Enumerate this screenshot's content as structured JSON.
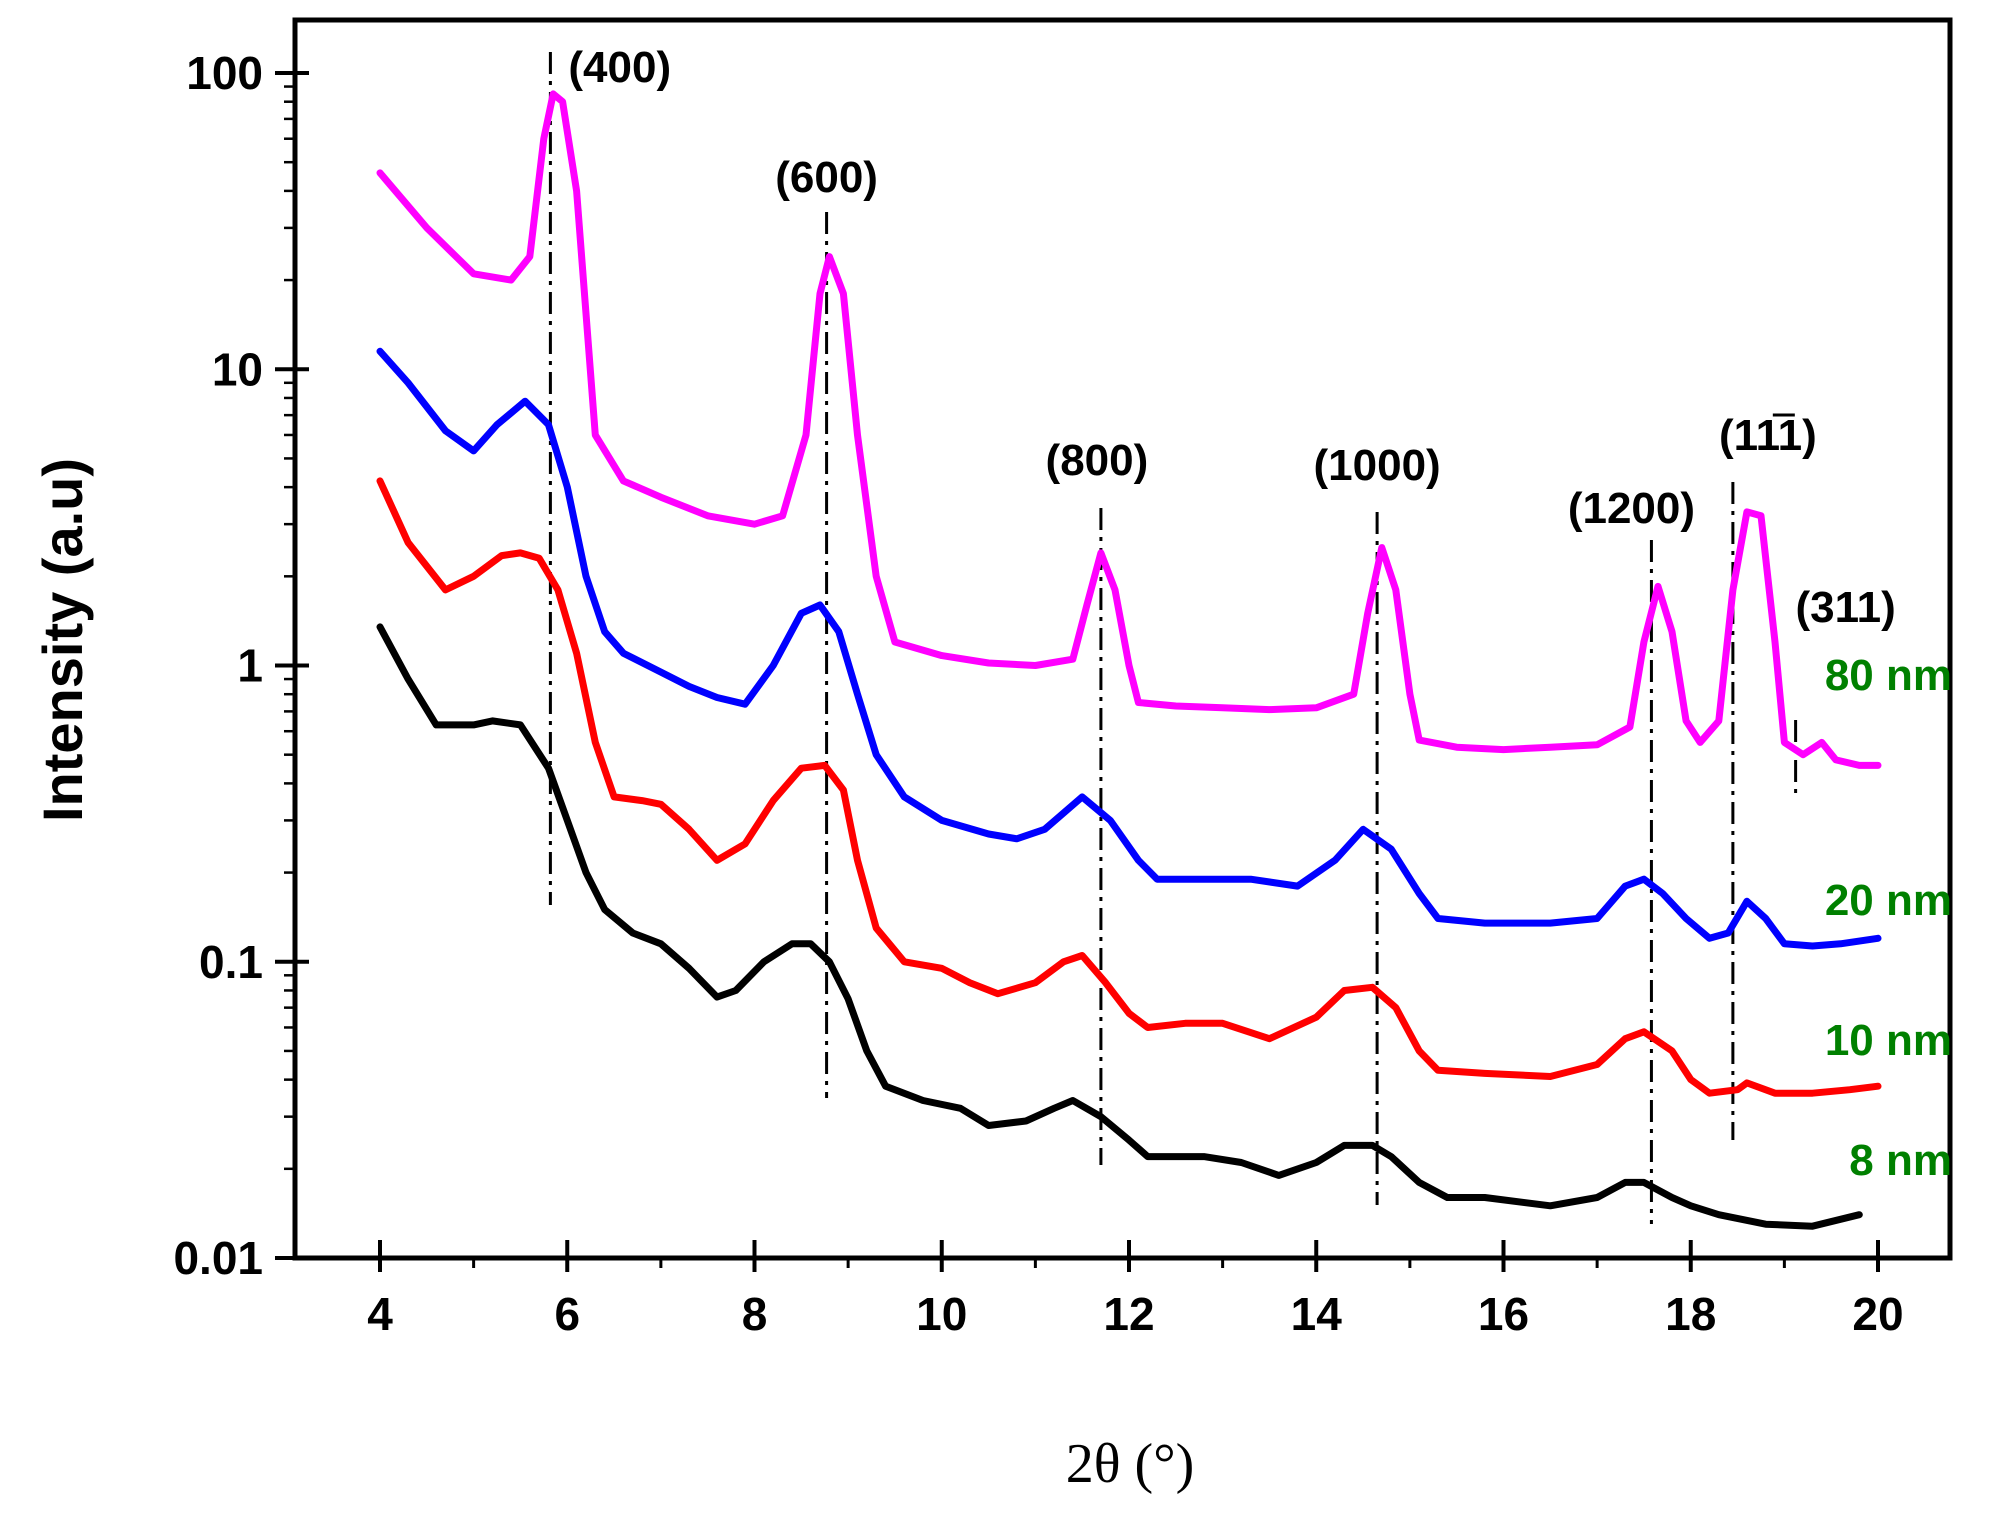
{
  "chart_data": {
    "type": "line",
    "title": "",
    "xlabel": "2θ (°)",
    "ylabel": "Intensity (a.u)",
    "xlim": [
      3,
      21
    ],
    "ylim": [
      0.01,
      100
    ],
    "yscale": "log",
    "x_ticks": [
      4,
      6,
      8,
      10,
      12,
      14,
      16,
      18,
      20
    ],
    "x_tick_labels": [
      "4",
      "6",
      "8",
      "10",
      "12",
      "14",
      "16",
      "18",
      "20"
    ],
    "y_ticks": [
      0.01,
      0.1,
      1,
      10,
      100
    ],
    "y_tick_labels": [
      "0.01",
      "0.1",
      "1",
      "10",
      "100"
    ],
    "series": [
      {
        "name": "80 nm",
        "color": "#ff00ff",
        "points": [
          [
            4.0,
            46
          ],
          [
            4.5,
            30
          ],
          [
            5.0,
            21
          ],
          [
            5.4,
            20
          ],
          [
            5.6,
            24
          ],
          [
            5.75,
            60
          ],
          [
            5.85,
            85
          ],
          [
            5.95,
            80
          ],
          [
            6.1,
            40
          ],
          [
            6.3,
            6
          ],
          [
            6.6,
            4.2
          ],
          [
            7.0,
            3.7
          ],
          [
            7.5,
            3.2
          ],
          [
            8.0,
            3.0
          ],
          [
            8.3,
            3.2
          ],
          [
            8.55,
            6
          ],
          [
            8.7,
            18
          ],
          [
            8.8,
            24
          ],
          [
            8.95,
            18
          ],
          [
            9.1,
            6
          ],
          [
            9.3,
            2
          ],
          [
            9.5,
            1.2
          ],
          [
            10.0,
            1.08
          ],
          [
            10.5,
            1.02
          ],
          [
            11.0,
            1.0
          ],
          [
            11.4,
            1.05
          ],
          [
            11.55,
            1.6
          ],
          [
            11.7,
            2.4
          ],
          [
            11.85,
            1.8
          ],
          [
            12.0,
            1.0
          ],
          [
            12.1,
            0.75
          ],
          [
            12.5,
            0.73
          ],
          [
            13.0,
            0.72
          ],
          [
            13.5,
            0.71
          ],
          [
            14.0,
            0.72
          ],
          [
            14.4,
            0.8
          ],
          [
            14.55,
            1.5
          ],
          [
            14.7,
            2.5
          ],
          [
            14.85,
            1.8
          ],
          [
            15.0,
            0.8
          ],
          [
            15.1,
            0.56
          ],
          [
            15.5,
            0.53
          ],
          [
            16.0,
            0.52
          ],
          [
            16.5,
            0.53
          ],
          [
            17.0,
            0.54
          ],
          [
            17.35,
            0.62
          ],
          [
            17.5,
            1.2
          ],
          [
            17.65,
            1.85
          ],
          [
            17.8,
            1.3
          ],
          [
            17.95,
            0.65
          ],
          [
            18.1,
            0.55
          ],
          [
            18.3,
            0.65
          ],
          [
            18.45,
            1.8
          ],
          [
            18.6,
            3.3
          ],
          [
            18.75,
            3.2
          ],
          [
            18.9,
            1.2
          ],
          [
            19.0,
            0.55
          ],
          [
            19.2,
            0.5
          ],
          [
            19.4,
            0.55
          ],
          [
            19.55,
            0.48
          ],
          [
            19.8,
            0.46
          ],
          [
            20.0,
            0.46
          ]
        ]
      },
      {
        "name": "20 nm",
        "color": "#0000ff",
        "points": [
          [
            4.0,
            11.5
          ],
          [
            4.3,
            9
          ],
          [
            4.7,
            6.2
          ],
          [
            5.0,
            5.3
          ],
          [
            5.25,
            6.5
          ],
          [
            5.55,
            7.8
          ],
          [
            5.8,
            6.5
          ],
          [
            6.0,
            4
          ],
          [
            6.2,
            2
          ],
          [
            6.4,
            1.3
          ],
          [
            6.6,
            1.1
          ],
          [
            7.0,
            0.95
          ],
          [
            7.3,
            0.85
          ],
          [
            7.6,
            0.78
          ],
          [
            7.9,
            0.74
          ],
          [
            8.2,
            1.0
          ],
          [
            8.5,
            1.5
          ],
          [
            8.7,
            1.6
          ],
          [
            8.9,
            1.3
          ],
          [
            9.1,
            0.8
          ],
          [
            9.3,
            0.5
          ],
          [
            9.6,
            0.36
          ],
          [
            10.0,
            0.3
          ],
          [
            10.5,
            0.27
          ],
          [
            10.8,
            0.26
          ],
          [
            11.1,
            0.28
          ],
          [
            11.5,
            0.36
          ],
          [
            11.8,
            0.3
          ],
          [
            12.1,
            0.22
          ],
          [
            12.3,
            0.19
          ],
          [
            12.7,
            0.19
          ],
          [
            13.3,
            0.19
          ],
          [
            13.8,
            0.18
          ],
          [
            14.2,
            0.22
          ],
          [
            14.5,
            0.28
          ],
          [
            14.8,
            0.24
          ],
          [
            15.1,
            0.17
          ],
          [
            15.3,
            0.14
          ],
          [
            15.8,
            0.135
          ],
          [
            16.5,
            0.135
          ],
          [
            17.0,
            0.14
          ],
          [
            17.3,
            0.18
          ],
          [
            17.5,
            0.19
          ],
          [
            17.7,
            0.17
          ],
          [
            17.95,
            0.14
          ],
          [
            18.2,
            0.12
          ],
          [
            18.4,
            0.125
          ],
          [
            18.6,
            0.16
          ],
          [
            18.8,
            0.14
          ],
          [
            19.0,
            0.115
          ],
          [
            19.3,
            0.113
          ],
          [
            19.6,
            0.115
          ],
          [
            20.0,
            0.12
          ]
        ]
      },
      {
        "name": "10 nm",
        "color": "#ff0000",
        "points": [
          [
            4.0,
            4.2
          ],
          [
            4.3,
            2.6
          ],
          [
            4.7,
            1.8
          ],
          [
            5.0,
            2.0
          ],
          [
            5.3,
            2.35
          ],
          [
            5.5,
            2.4
          ],
          [
            5.7,
            2.3
          ],
          [
            5.9,
            1.8
          ],
          [
            6.1,
            1.1
          ],
          [
            6.3,
            0.55
          ],
          [
            6.5,
            0.36
          ],
          [
            6.8,
            0.35
          ],
          [
            7.0,
            0.34
          ],
          [
            7.3,
            0.28
          ],
          [
            7.6,
            0.22
          ],
          [
            7.9,
            0.25
          ],
          [
            8.2,
            0.35
          ],
          [
            8.5,
            0.45
          ],
          [
            8.75,
            0.46
          ],
          [
            8.95,
            0.38
          ],
          [
            9.1,
            0.22
          ],
          [
            9.3,
            0.13
          ],
          [
            9.6,
            0.1
          ],
          [
            10.0,
            0.095
          ],
          [
            10.3,
            0.085
          ],
          [
            10.6,
            0.078
          ],
          [
            11.0,
            0.085
          ],
          [
            11.3,
            0.1
          ],
          [
            11.5,
            0.105
          ],
          [
            11.75,
            0.085
          ],
          [
            12.0,
            0.067
          ],
          [
            12.2,
            0.06
          ],
          [
            12.6,
            0.062
          ],
          [
            13.0,
            0.062
          ],
          [
            13.5,
            0.055
          ],
          [
            14.0,
            0.065
          ],
          [
            14.3,
            0.08
          ],
          [
            14.6,
            0.082
          ],
          [
            14.85,
            0.07
          ],
          [
            15.1,
            0.05
          ],
          [
            15.3,
            0.043
          ],
          [
            15.8,
            0.042
          ],
          [
            16.5,
            0.041
          ],
          [
            17.0,
            0.045
          ],
          [
            17.3,
            0.055
          ],
          [
            17.5,
            0.058
          ],
          [
            17.8,
            0.05
          ],
          [
            18.0,
            0.04
          ],
          [
            18.2,
            0.036
          ],
          [
            18.5,
            0.037
          ],
          [
            18.6,
            0.039
          ],
          [
            18.9,
            0.036
          ],
          [
            19.3,
            0.036
          ],
          [
            19.7,
            0.037
          ],
          [
            20.0,
            0.038
          ]
        ]
      },
      {
        "name": "8 nm",
        "color": "#000000",
        "points": [
          [
            4.0,
            1.35
          ],
          [
            4.3,
            0.9
          ],
          [
            4.6,
            0.63
          ],
          [
            5.0,
            0.63
          ],
          [
            5.2,
            0.65
          ],
          [
            5.5,
            0.63
          ],
          [
            5.8,
            0.45
          ],
          [
            6.0,
            0.3
          ],
          [
            6.2,
            0.2
          ],
          [
            6.4,
            0.15
          ],
          [
            6.7,
            0.125
          ],
          [
            7.0,
            0.115
          ],
          [
            7.3,
            0.095
          ],
          [
            7.6,
            0.076
          ],
          [
            7.8,
            0.08
          ],
          [
            8.1,
            0.1
          ],
          [
            8.4,
            0.115
          ],
          [
            8.6,
            0.115
          ],
          [
            8.8,
            0.1
          ],
          [
            9.0,
            0.075
          ],
          [
            9.2,
            0.05
          ],
          [
            9.4,
            0.038
          ],
          [
            9.8,
            0.034
          ],
          [
            10.2,
            0.032
          ],
          [
            10.5,
            0.028
          ],
          [
            10.9,
            0.029
          ],
          [
            11.2,
            0.032
          ],
          [
            11.4,
            0.034
          ],
          [
            11.7,
            0.03
          ],
          [
            12.0,
            0.025
          ],
          [
            12.2,
            0.022
          ],
          [
            12.8,
            0.022
          ],
          [
            13.2,
            0.021
          ],
          [
            13.6,
            0.019
          ],
          [
            14.0,
            0.021
          ],
          [
            14.3,
            0.024
          ],
          [
            14.6,
            0.024
          ],
          [
            14.8,
            0.022
          ],
          [
            15.1,
            0.018
          ],
          [
            15.4,
            0.016
          ],
          [
            15.8,
            0.016
          ],
          [
            16.5,
            0.015
          ],
          [
            17.0,
            0.016
          ],
          [
            17.3,
            0.018
          ],
          [
            17.5,
            0.018
          ],
          [
            17.8,
            0.016
          ],
          [
            18.0,
            0.015
          ],
          [
            18.3,
            0.014
          ],
          [
            18.8,
            0.013
          ],
          [
            19.3,
            0.0128
          ],
          [
            19.8,
            0.014
          ]
        ]
      }
    ],
    "series_labels": [
      "80 nm",
      "20 nm",
      "10 nm",
      "8 nm"
    ],
    "series_label_color": "#008000",
    "annotations": [
      {
        "label": "(400)",
        "x": 5.82
      },
      {
        "label": "(600)",
        "x": 8.77
      },
      {
        "label": "(800)",
        "x": 11.7
      },
      {
        "label": "(1000)",
        "x": 14.65
      },
      {
        "label": "(1200)",
        "x": 17.58
      },
      {
        "label": "(111)",
        "label_suffix": "̄",
        "x": 18.45
      },
      {
        "label": "(311)",
        "x": 19.12
      }
    ]
  }
}
